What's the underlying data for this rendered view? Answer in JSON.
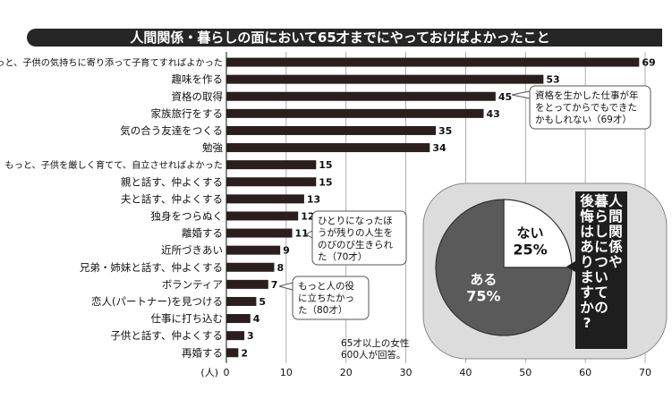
{
  "chart_data": {
    "type": "bar",
    "title": "人間関係・暮らしの面において65才までにやっておけばよかったこと",
    "unit": "(人)",
    "categories": [
      "もっと、子供の気持ちに寄り添って子育てすればよかった",
      "趣味を作る",
      "資格の取得",
      "家族旅行をする",
      "気の合う友達をつくる",
      "勉強",
      "もっと、子供を厳しく育てて、自立させればよかった",
      "親と話す、仲よくする",
      "夫と話す、仲よくする",
      "独身をつらぬく",
      "離婚する",
      "近所づきあい",
      "兄弟・姉妹と話す、仲よくする",
      "ボランティア",
      "恋人(パートナー)を見つける",
      "仕事に打ち込む",
      "子供と話す、仲よくする",
      "再婚する"
    ],
    "values": [
      69,
      53,
      45,
      43,
      35,
      34,
      15,
      15,
      13,
      12,
      11,
      9,
      8,
      7,
      5,
      4,
      3,
      2
    ],
    "xlim": [
      0,
      70
    ],
    "xticks": [
      "0",
      "10",
      "20",
      "30",
      "40",
      "50",
      "60",
      "70"
    ],
    "grid": true,
    "annotations": [
      [
        "資格を生かした仕事が年",
        "をとってからでもできた",
        "かもしれない（69才）"
      ],
      [
        "ひとりになったほ",
        "うが残りの人生を",
        "のびのび生きられ",
        "た（70才）"
      ],
      [
        "もっと人の役",
        "に立ちたかっ",
        "た（80才）"
      ]
    ],
    "footnote": [
      "65才以上の女性",
      "600人が回答。"
    ],
    "pie": {
      "type": "pie",
      "question": [
        "人間関係や",
        "暮らしについての",
        "後悔はありますか?"
      ],
      "slices": [
        {
          "label": "ある",
          "value": 75,
          "value_text": "75%"
        },
        {
          "label": "ない",
          "value": 25,
          "value_text": "25%"
        }
      ]
    }
  },
  "colors": {
    "bar": "#2a1e1e",
    "title_band": "#262626",
    "pie_yes": "#5a5a5a",
    "pie_no": "#ffffff",
    "pie_panel": "#dcdcdc"
  }
}
